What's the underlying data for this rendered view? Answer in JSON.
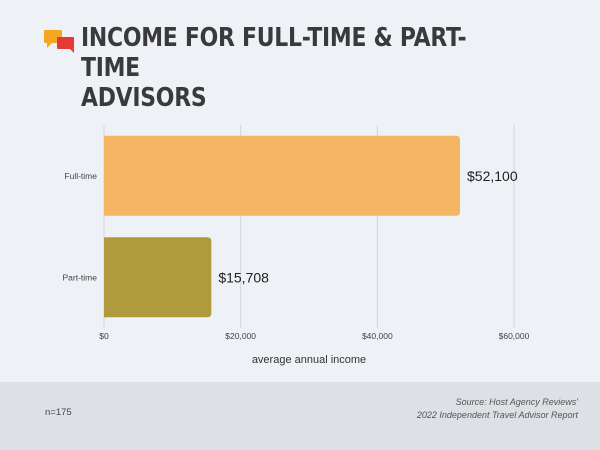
{
  "header": {
    "title": "INCOME FOR FULL-TIME & PART-TIME\nADVISORS",
    "logo_icon": "chat-bubbles-icon",
    "logo_colors": [
      "#f5a623",
      "#e53935"
    ]
  },
  "chart_data": {
    "type": "bar",
    "orientation": "horizontal",
    "categories": [
      "Full-time",
      "Part-time"
    ],
    "values": [
      52100,
      15708
    ],
    "value_labels": [
      "$52,100",
      "$15,708"
    ],
    "colors": [
      "#f4b565",
      "#b09a3e"
    ],
    "xlabel": "average annual income",
    "ylabel": "",
    "xlim": [
      0,
      60000
    ],
    "x_ticks": [
      0,
      20000,
      40000,
      60000
    ],
    "x_tick_labels": [
      "$0",
      "$20,000",
      "$40,000",
      "$60,000"
    ],
    "grid": "vertical"
  },
  "footer": {
    "n_text": "n=175",
    "source_line1": "Source: Host Agency Reviews'",
    "source_line2": "2022 Independent Travel Advisor Report"
  }
}
